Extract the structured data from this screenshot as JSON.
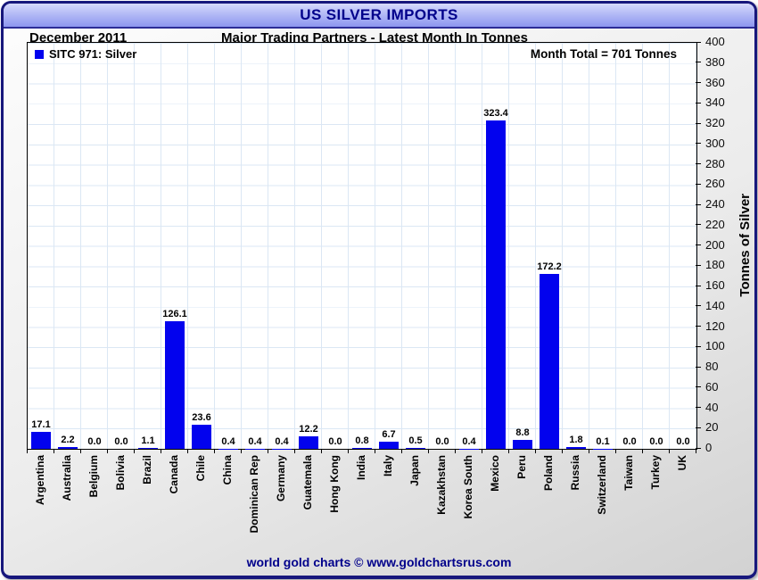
{
  "window": {
    "title": "US SILVER IMPORTS",
    "footer": "world gold charts © www.goldchartsrus.com"
  },
  "header": {
    "period": "December 2011",
    "subtitle": "Major Trading Partners - Latest Month In Tonnes"
  },
  "legend": {
    "series_label": "SITC 971: Silver"
  },
  "annotations": {
    "month_total": "Month Total = 701 Tonnes"
  },
  "colors": {
    "bar": "#0202ee",
    "title_text": "#00008b",
    "footer_text": "#00008b",
    "frame_border": "#17177c",
    "titlebar_top": "#d6dafc",
    "titlebar_bottom": "#8d96ef",
    "grid": "#dbe7f4"
  },
  "chart_data": {
    "type": "bar",
    "title": "US SILVER IMPORTS",
    "subtitle": "Major Trading Partners - Latest Month In Tonnes",
    "period": "December 2011",
    "series_name": "SITC 971: Silver",
    "month_total_tonnes": 701,
    "categories": [
      "Argentina",
      "Australia",
      "Belgium",
      "Bolivia",
      "Brazil",
      "Canada",
      "Chile",
      "China",
      "Dominican Rep",
      "Germany",
      "Guatemala",
      "Hong Kong",
      "India",
      "Italy",
      "Japan",
      "Kazakhstan",
      "Korea South",
      "Mexico",
      "Peru",
      "Poland",
      "Russia",
      "Switzerland",
      "Taiwan",
      "Turkey",
      "UK"
    ],
    "values": [
      17.1,
      2.2,
      0.0,
      0.0,
      1.1,
      126.1,
      23.6,
      0.4,
      0.4,
      0.4,
      12.2,
      0.0,
      0.8,
      6.7,
      0.5,
      0.0,
      0.4,
      323.4,
      8.8,
      172.2,
      1.8,
      0.1,
      0.0,
      0.0,
      0.0
    ],
    "xlabel": "",
    "ylabel": "Tonnes of Silver",
    "ylim": [
      0,
      400
    ],
    "ytick_step": 20,
    "grid": true,
    "value_labels": true,
    "legend_position": "top-left",
    "yaxis_side": "right"
  }
}
